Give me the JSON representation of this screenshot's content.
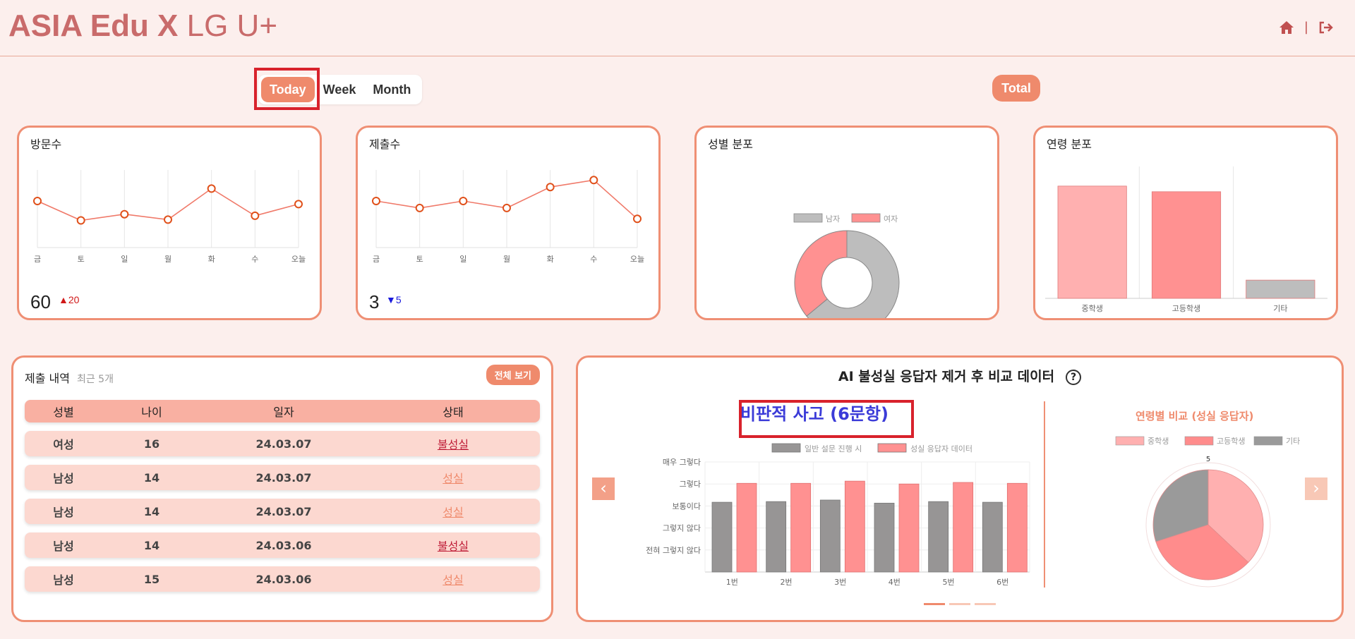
{
  "brand": {
    "bold": "ASIA Edu X",
    "light": "LG U+"
  },
  "header": {
    "icons": [
      "home-icon",
      "logout-icon"
    ],
    "separator": "|"
  },
  "period_tabs": [
    "Today",
    "Week",
    "Month"
  ],
  "period_selected": "Today",
  "total_label": "Total",
  "visits": {
    "title": "방문수",
    "value": "60",
    "delta": "20",
    "chart_data": {
      "type": "line",
      "categories": [
        "금",
        "토",
        "일",
        "월",
        "화",
        "수",
        "오늘"
      ],
      "values": [
        60,
        35,
        43,
        36,
        76,
        41,
        56
      ],
      "ylim": [
        0,
        100
      ]
    }
  },
  "submissions": {
    "title": "제출수",
    "value": "3",
    "delta": "5",
    "chart_data": {
      "type": "line",
      "categories": [
        "금",
        "토",
        "일",
        "월",
        "화",
        "수",
        "오늘"
      ],
      "values": [
        60,
        51,
        60,
        51,
        78,
        87,
        37
      ],
      "ylim": [
        0,
        100
      ]
    }
  },
  "gender": {
    "title": "성별 분포",
    "chart_data": {
      "type": "pie",
      "labels": [
        "남자",
        "여자"
      ],
      "values": [
        64,
        36
      ],
      "colors": [
        "#bdbdbd",
        "#ff9191"
      ]
    }
  },
  "age": {
    "title": "연령 분포",
    "chart_data": {
      "type": "bar",
      "categories": [
        "중학생",
        "고등학생",
        "기타"
      ],
      "values": [
        80,
        76,
        13
      ],
      "colors": [
        "#ffb0b0",
        "#ff9191",
        "#bdbdbd"
      ],
      "ylim": [
        0,
        94
      ]
    }
  },
  "submission_history": {
    "title": "제출 내역",
    "subtitle": "최근 5개",
    "view_all": "전체 보기",
    "columns": [
      "성별",
      "나이",
      "일자",
      "상태"
    ],
    "rows": [
      {
        "gender": "여성",
        "age": "16",
        "date": "24.03.07",
        "status": "불성실",
        "ok": false
      },
      {
        "gender": "남성",
        "age": "14",
        "date": "24.03.07",
        "status": "성실",
        "ok": true
      },
      {
        "gender": "남성",
        "age": "14",
        "date": "24.03.07",
        "status": "성실",
        "ok": true
      },
      {
        "gender": "남성",
        "age": "14",
        "date": "24.03.06",
        "status": "불성실",
        "ok": false
      },
      {
        "gender": "남성",
        "age": "15",
        "date": "24.03.06",
        "status": "성실",
        "ok": true
      }
    ]
  },
  "comparison": {
    "title": "AI 불성실 응답자 제거 후 비교 데이터",
    "help": "?",
    "section_title": "비판적 사고 (6문항)",
    "chart_data": {
      "type": "bar",
      "categories": [
        "1번",
        "2번",
        "3번",
        "4번",
        "5번",
        "6번"
      ],
      "y_tick_labels": [
        "전혀 그렇지 않다",
        "그렇지 않다",
        "보통이다",
        "그렇다",
        "매우 그렇다"
      ],
      "ylim": [
        0,
        5
      ],
      "series": [
        {
          "name": "일반 설문 진행 시",
          "values": [
            3.17,
            3.2,
            3.27,
            3.13,
            3.2,
            3.17
          ],
          "color": "#979595"
        },
        {
          "name": "성실 응답자 데이터",
          "values": [
            4.03,
            4.03,
            4.13,
            4.0,
            4.07,
            4.03
          ],
          "color": "#ff9191"
        }
      ]
    },
    "age_compare": {
      "title": "연령별 비교 (성실 응답자)",
      "scale_max": "5",
      "chart_data": {
        "type": "pie",
        "labels": [
          "중학생",
          "고등학생",
          "기타"
        ],
        "values": [
          37,
          33,
          30
        ],
        "colors": [
          "#ffb0b0",
          "#ff8c8c",
          "#9a9a9a"
        ]
      }
    }
  }
}
